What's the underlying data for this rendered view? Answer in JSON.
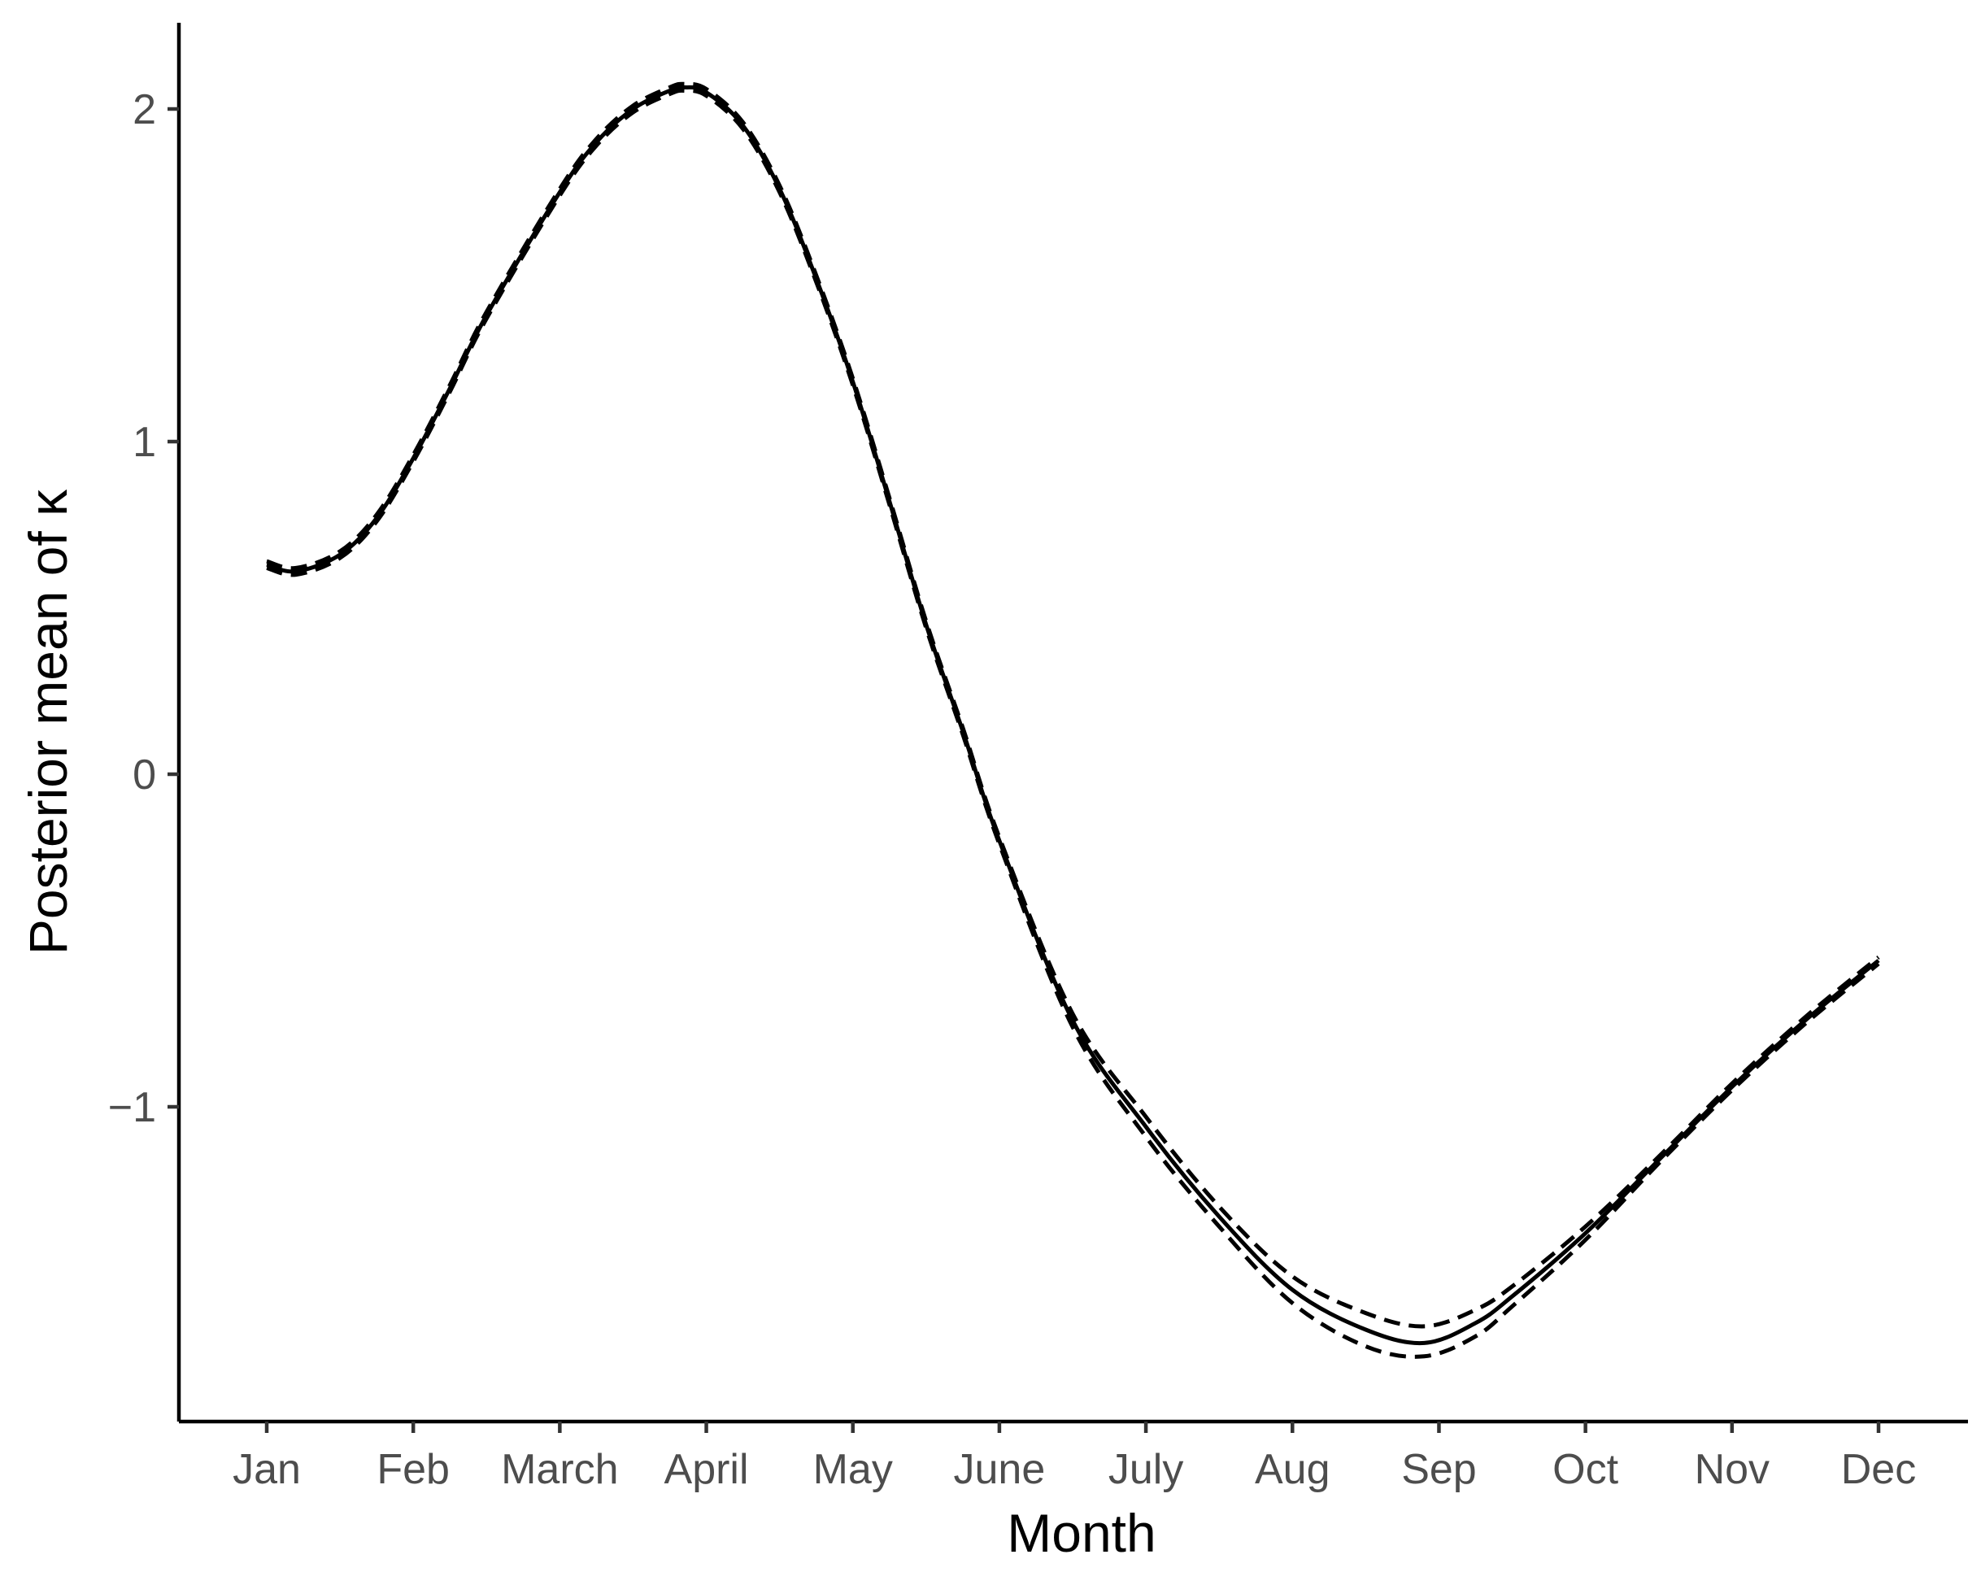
{
  "chart_data": {
    "type": "line",
    "xlabel": "Month",
    "ylabel": "Posterior mean of κ",
    "x_ticks": [
      "Jan",
      "Feb",
      "March",
      "April",
      "May",
      "June",
      "July",
      "Aug",
      "Sep",
      "Oct",
      "Nov",
      "Dec"
    ],
    "x_range": [
      0,
      11
    ],
    "ylim": [
      -1.85,
      2.25
    ],
    "y_ticks": [
      -1,
      0,
      1,
      2
    ],
    "y_tick_labels": [
      "−1",
      "0",
      "1",
      "2"
    ],
    "grid": false,
    "series": [
      {
        "style": "solid",
        "x": [
          0,
          0.2,
          0.5,
          0.75,
          1,
          1.25,
          1.5,
          2,
          2.25,
          2.5,
          2.75,
          2.85,
          3,
          3.25,
          3.5,
          3.75,
          4,
          4.25,
          4.5,
          4.75,
          5,
          5.5,
          6,
          6.5,
          7,
          7.5,
          7.9,
          8.25,
          8.5,
          9,
          9.5,
          10,
          10.5,
          11
        ],
        "y": [
          0.63,
          0.61,
          0.66,
          0.77,
          0.95,
          1.16,
          1.38,
          1.75,
          1.9,
          2.0,
          2.055,
          2.065,
          2.05,
          1.95,
          1.76,
          1.49,
          1.18,
          0.82,
          0.45,
          0.13,
          -0.2,
          -0.74,
          -1.06,
          -1.33,
          -1.55,
          -1.67,
          -1.71,
          -1.65,
          -1.57,
          -1.38,
          -1.16,
          -0.94,
          -0.74,
          -0.56
        ]
      },
      {
        "style": "dashed",
        "x": [
          0,
          0.2,
          0.5,
          0.75,
          1,
          1.25,
          1.5,
          2,
          2.25,
          2.5,
          2.75,
          2.85,
          3,
          3.25,
          3.5,
          3.75,
          4,
          4.25,
          4.5,
          4.75,
          5,
          5.5,
          6,
          6.5,
          7,
          7.5,
          7.9,
          8.25,
          8.5,
          9,
          9.5,
          10,
          10.5,
          11
        ],
        "y": [
          0.64,
          0.62,
          0.67,
          0.78,
          0.96,
          1.17,
          1.39,
          1.76,
          1.91,
          2.01,
          2.065,
          2.075,
          2.06,
          1.96,
          1.77,
          1.5,
          1.19,
          0.83,
          0.46,
          0.14,
          -0.19,
          -0.72,
          -1.03,
          -1.3,
          -1.51,
          -1.62,
          -1.66,
          -1.61,
          -1.54,
          -1.36,
          -1.15,
          -0.93,
          -0.73,
          -0.55
        ]
      },
      {
        "style": "dashed",
        "x": [
          0,
          0.2,
          0.5,
          0.75,
          1,
          1.25,
          1.5,
          2,
          2.25,
          2.5,
          2.75,
          2.85,
          3,
          3.25,
          3.5,
          3.75,
          4,
          4.25,
          4.5,
          4.75,
          5,
          5.5,
          6,
          6.5,
          7,
          7.5,
          7.9,
          8.25,
          8.5,
          9,
          9.5,
          10,
          10.5,
          11
        ],
        "y": [
          0.62,
          0.6,
          0.65,
          0.76,
          0.94,
          1.15,
          1.37,
          1.74,
          1.89,
          1.99,
          2.045,
          2.055,
          2.04,
          1.94,
          1.75,
          1.48,
          1.17,
          0.81,
          0.44,
          0.12,
          -0.21,
          -0.76,
          -1.09,
          -1.36,
          -1.59,
          -1.72,
          -1.75,
          -1.69,
          -1.6,
          -1.4,
          -1.17,
          -0.95,
          -0.75,
          -0.57
        ]
      }
    ]
  }
}
